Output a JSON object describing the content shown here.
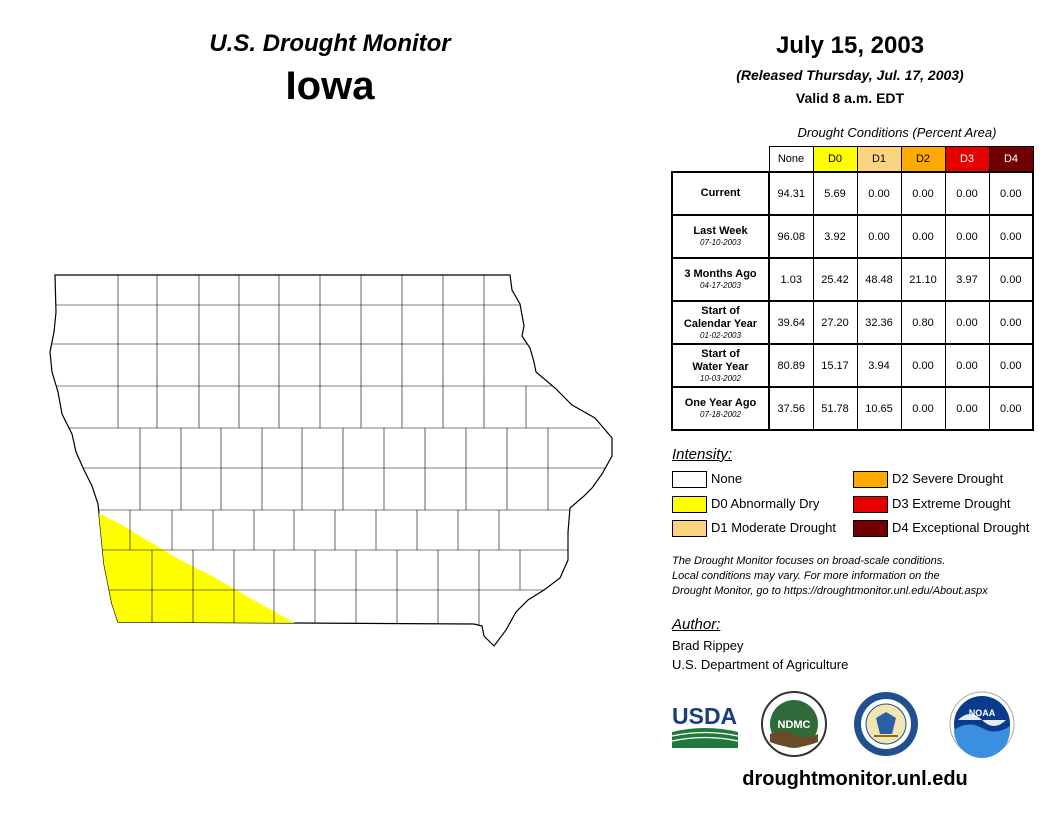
{
  "header": {
    "monitor_title": "U.S. Drought Monitor",
    "state": "Iowa",
    "date": "July 15, 2003",
    "released": "(Released Thursday, Jul. 17, 2003)",
    "valid": "Valid 8 a.m. EDT"
  },
  "table": {
    "caption": "Drought Conditions (Percent Area)",
    "columns": [
      "None",
      "D0",
      "D1",
      "D2",
      "D3",
      "D4"
    ],
    "rows": [
      {
        "label": "Current",
        "sub": "",
        "values": [
          "94.31",
          "5.69",
          "0.00",
          "0.00",
          "0.00",
          "0.00"
        ]
      },
      {
        "label": "Last Week",
        "sub": "07-10-2003",
        "values": [
          "96.08",
          "3.92",
          "0.00",
          "0.00",
          "0.00",
          "0.00"
        ]
      },
      {
        "label": "3 Months Ago",
        "sub": "04-17-2003",
        "values": [
          "1.03",
          "25.42",
          "48.48",
          "21.10",
          "3.97",
          "0.00"
        ]
      },
      {
        "label": "Start of Calendar Year",
        "sub": "01-02-2003",
        "values": [
          "39.64",
          "27.20",
          "32.36",
          "0.80",
          "0.00",
          "0.00"
        ]
      },
      {
        "label": "Start of Water Year",
        "sub": "10-03-2002",
        "values": [
          "80.89",
          "15.17",
          "3.94",
          "0.00",
          "0.00",
          "0.00"
        ]
      },
      {
        "label": "One Year Ago",
        "sub": "07-18-2002",
        "values": [
          "37.56",
          "51.78",
          "10.65",
          "0.00",
          "0.00",
          "0.00"
        ]
      }
    ]
  },
  "legend": {
    "title": "Intensity:",
    "items": [
      {
        "label": "None",
        "color": "#ffffff"
      },
      {
        "label": "D0 Abnormally Dry",
        "color": "#ffff00"
      },
      {
        "label": "D1 Moderate Drought",
        "color": "#fcd37f"
      },
      {
        "label": "D2 Severe Drought",
        "color": "#ffaa00"
      },
      {
        "label": "D3 Extreme Drought",
        "color": "#e60000"
      },
      {
        "label": "D4 Exceptional Drought",
        "color": "#730000"
      }
    ]
  },
  "note": {
    "line1": "The Drought Monitor focuses on broad-scale conditions.",
    "line2": "Local conditions may vary. For more information on the",
    "line3": "Drought Monitor, go to https://droughtmonitor.unl.edu/About.aspx"
  },
  "author": {
    "title": "Author:",
    "name": "Brad Rippey",
    "org": "U.S. Department of Agriculture"
  },
  "logos": {
    "usda": "USDA",
    "ndmc": "NDMC",
    "noaa": "NOAA"
  },
  "website": "droughtmonitor.unl.edu",
  "map": {
    "region_fill": "#ffffff",
    "drought_fill": "#ffff00",
    "drought_category": "D0"
  }
}
